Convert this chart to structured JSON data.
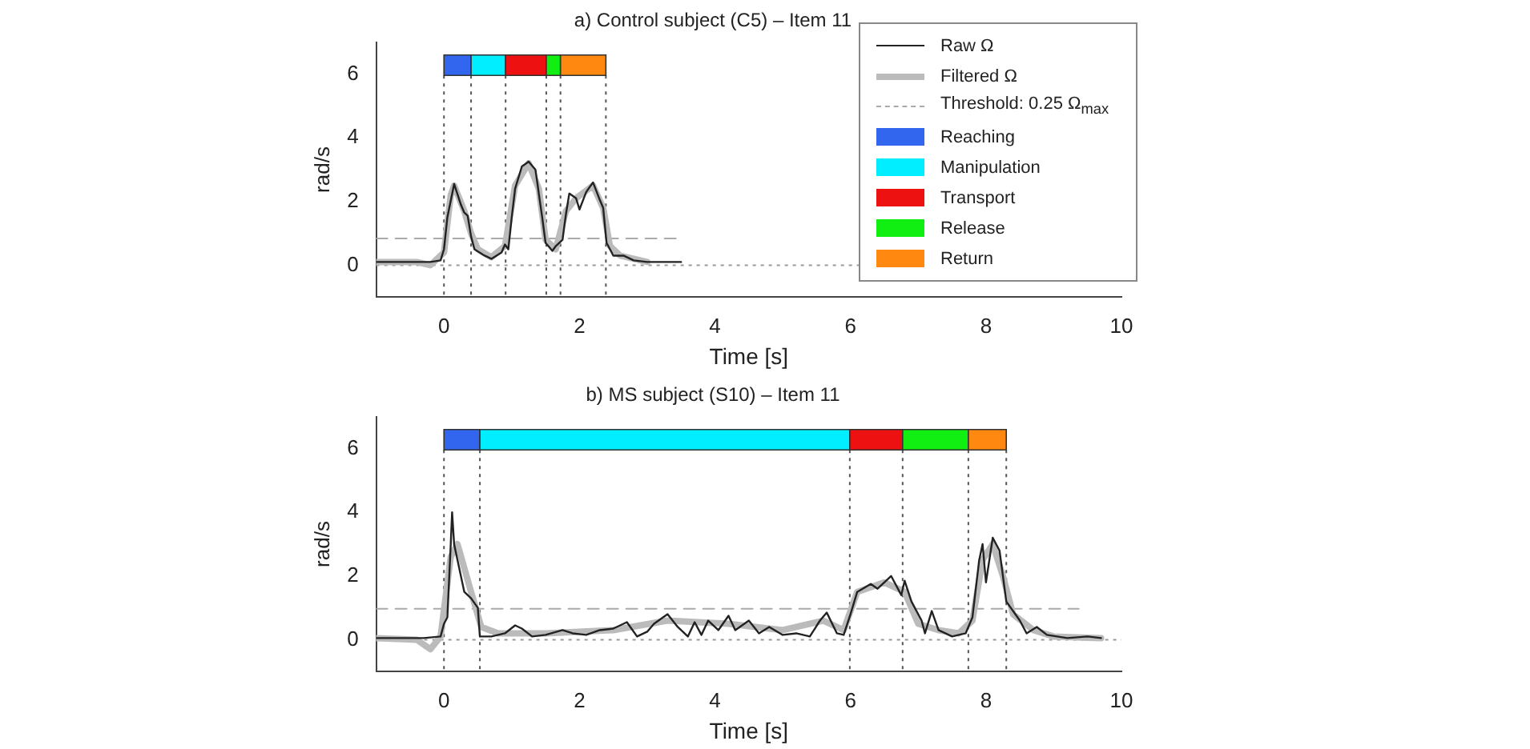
{
  "chart_data": [
    {
      "type": "line",
      "title": "a) Control subject (C5) – Item 11",
      "xlabel": "Time [s]",
      "ylabel": "rad/s",
      "xlim": [
        -1,
        10
      ],
      "xticks": [
        0,
        2,
        4,
        6,
        8,
        10
      ],
      "ylim": [
        -1,
        7
      ],
      "yticks": [
        0,
        2,
        4,
        6
      ],
      "grid": false,
      "legend": "top right",
      "marker": "none",
      "series": [
        {
          "name": "Raw Ω",
          "color": "#222222",
          "x": [
            -1,
            -0.2,
            -0.05,
            0,
            0.05,
            0.15,
            0.25,
            0.3,
            0.35,
            0.4,
            0.45,
            0.6,
            0.7,
            0.85,
            0.9,
            0.95,
            1.0,
            1.05,
            1.15,
            1.25,
            1.35,
            1.45,
            1.5,
            1.6,
            1.65,
            1.75,
            1.8,
            1.85,
            1.95,
            2.0,
            2.1,
            2.2,
            2.3,
            2.35,
            2.4,
            2.5,
            2.65,
            2.8,
            3.0,
            3.5
          ],
          "values": [
            0.1,
            0.1,
            0.15,
            0.5,
            1.5,
            2.55,
            1.9,
            1.65,
            1.55,
            0.9,
            0.5,
            0.3,
            0.2,
            0.4,
            0.65,
            0.5,
            1.5,
            2.4,
            3.1,
            3.25,
            3.0,
            1.5,
            0.7,
            0.45,
            0.6,
            0.8,
            1.6,
            2.25,
            2.1,
            1.75,
            2.3,
            2.6,
            2.05,
            1.8,
            0.7,
            0.3,
            0.3,
            0.15,
            0.1,
            0.1
          ]
        },
        {
          "name": "Filtered Ω",
          "color": "#bbbbbb",
          "x": [
            -1,
            -0.4,
            -0.2,
            0,
            0.1,
            0.15,
            0.3,
            0.4,
            0.5,
            0.7,
            0.9,
            1.05,
            1.25,
            1.4,
            1.5,
            1.65,
            1.8,
            1.95,
            2.2,
            2.35,
            2.45,
            2.6,
            2.8,
            3.0
          ],
          "values": [
            0.1,
            0.1,
            0.0,
            0.4,
            2.2,
            2.5,
            1.7,
            1.0,
            0.5,
            0.25,
            0.6,
            2.5,
            3.2,
            2.4,
            0.8,
            0.5,
            1.7,
            2.1,
            2.5,
            1.8,
            0.6,
            0.3,
            0.2,
            0.1
          ]
        },
        {
          "name": "Threshold: 0.25 Ω$_{max}$",
          "color": "#aaaaaa",
          "line_style": "dashed",
          "x": [
            -1,
            3.5
          ],
          "values": [
            0.84,
            0.84
          ]
        }
      ],
      "ref_lines": [
        {
          "axis": "y",
          "value": 0,
          "color": "#999999",
          "line_style": "dotted"
        },
        {
          "axis": "x",
          "value": 0,
          "color": "#555555",
          "line_style": "dotted"
        },
        {
          "axis": "x",
          "value": 0.4,
          "color": "#555555",
          "line_style": "dotted"
        },
        {
          "axis": "x",
          "value": 0.91,
          "color": "#555555",
          "line_style": "dotted"
        },
        {
          "axis": "x",
          "value": 1.51,
          "color": "#555555",
          "line_style": "dotted"
        },
        {
          "axis": "x",
          "value": 1.72,
          "color": "#555555",
          "line_style": "dotted"
        },
        {
          "axis": "x",
          "value": 2.39,
          "color": "#555555",
          "line_style": "dotted"
        }
      ],
      "bands": [
        {
          "axis": "x",
          "from": 0,
          "to": 0.4,
          "label": "Reaching",
          "color": "#3366ee"
        },
        {
          "axis": "x",
          "from": 0.4,
          "to": 0.91,
          "label": "Manipulation",
          "color": "#00eeff"
        },
        {
          "axis": "x",
          "from": 0.91,
          "to": 1.51,
          "label": "Transport",
          "color": "#ee1111"
        },
        {
          "axis": "x",
          "from": 1.51,
          "to": 1.72,
          "label": "Release",
          "color": "#11ee11"
        },
        {
          "axis": "x",
          "from": 1.72,
          "to": 2.39,
          "label": "Return",
          "color": "#ff8811"
        }
      ]
    },
    {
      "type": "line",
      "title": "b) MS subject (S10) – Item 11",
      "xlabel": "Time [s]",
      "ylabel": "rad/s",
      "xlim": [
        -1,
        10
      ],
      "xticks": [
        0,
        2,
        4,
        6,
        8,
        10
      ],
      "ylim": [
        -1,
        7
      ],
      "yticks": [
        0,
        2,
        4,
        6
      ],
      "grid": false,
      "legend": false,
      "marker": "none",
      "series": [
        {
          "color": "#222222",
          "x": [
            -1,
            -0.3,
            -0.05,
            0,
            0.05,
            0.1,
            0.12,
            0.15,
            0.2,
            0.3,
            0.4,
            0.5,
            0.53,
            0.7,
            0.9,
            1.05,
            1.15,
            1.3,
            1.5,
            1.75,
            1.9,
            2.1,
            2.3,
            2.5,
            2.7,
            2.85,
            3.0,
            3.1,
            3.3,
            3.45,
            3.6,
            3.7,
            3.8,
            3.9,
            4.05,
            4.2,
            4.3,
            4.5,
            4.65,
            4.8,
            5.0,
            5.2,
            5.4,
            5.55,
            5.65,
            5.8,
            5.9,
            6.0,
            6.1,
            6.3,
            6.4,
            6.6,
            6.75,
            6.8,
            6.9,
            7.05,
            7.1,
            7.2,
            7.3,
            7.5,
            7.7,
            7.8,
            7.9,
            7.95,
            8.0,
            8.1,
            8.15,
            8.2,
            8.3,
            8.5,
            8.6,
            8.75,
            8.9,
            9.2,
            9.5,
            9.7
          ],
          "values": [
            0.05,
            0.05,
            0.1,
            0.5,
            0.7,
            3.0,
            4.0,
            3.0,
            2.5,
            1.5,
            1.3,
            1.0,
            0.1,
            0.1,
            0.2,
            0.45,
            0.35,
            0.1,
            0.15,
            0.3,
            0.2,
            0.15,
            0.3,
            0.35,
            0.55,
            0.1,
            0.25,
            0.5,
            0.8,
            0.4,
            0.1,
            0.55,
            0.15,
            0.6,
            0.3,
            0.75,
            0.3,
            0.6,
            0.2,
            0.4,
            0.15,
            0.2,
            0.1,
            0.6,
            0.85,
            0.2,
            0.15,
            0.8,
            1.5,
            1.75,
            1.6,
            2.0,
            1.4,
            1.85,
            1.2,
            0.6,
            0.2,
            0.9,
            0.3,
            0.1,
            0.2,
            0.7,
            2.5,
            3.0,
            1.8,
            3.2,
            3.0,
            2.8,
            1.2,
            0.6,
            0.2,
            0.4,
            0.15,
            0.05,
            0.1,
            0.05
          ]
        },
        {
          "color": "#bbbbbb",
          "x": [
            -1,
            -0.4,
            -0.2,
            -0.05,
            0.1,
            0.2,
            0.4,
            0.55,
            0.8,
            1.5,
            2.5,
            3.3,
            4.2,
            5.0,
            5.6,
            5.9,
            6.1,
            6.5,
            6.8,
            7.0,
            7.3,
            7.6,
            7.8,
            7.95,
            8.1,
            8.25,
            8.4,
            8.7,
            9.0,
            9.7
          ],
          "values": [
            0.05,
            0.0,
            -0.3,
            0.1,
            2.6,
            3.0,
            1.5,
            0.4,
            0.2,
            0.2,
            0.3,
            0.6,
            0.5,
            0.3,
            0.6,
            0.3,
            1.5,
            1.8,
            1.5,
            0.5,
            0.3,
            0.2,
            0.6,
            2.5,
            3.0,
            2.0,
            0.8,
            0.3,
            0.1,
            0.05
          ]
        },
        {
          "color": "#aaaaaa",
          "line_style": "dashed",
          "x": [
            -1,
            9.37
          ],
          "values": [
            0.97,
            0.97
          ]
        }
      ],
      "ref_lines": [
        {
          "axis": "y",
          "value": 0,
          "color": "#999999",
          "line_style": "dotted"
        },
        {
          "axis": "x",
          "value": 0,
          "color": "#555555",
          "line_style": "dotted"
        },
        {
          "axis": "x",
          "value": 0.53,
          "color": "#555555",
          "line_style": "dotted"
        },
        {
          "axis": "x",
          "value": 5.99,
          "color": "#555555",
          "line_style": "dotted"
        },
        {
          "axis": "x",
          "value": 6.77,
          "color": "#555555",
          "line_style": "dotted"
        },
        {
          "axis": "x",
          "value": 7.74,
          "color": "#555555",
          "line_style": "dotted"
        },
        {
          "axis": "x",
          "value": 8.3,
          "color": "#555555",
          "line_style": "dotted"
        }
      ],
      "bands": [
        {
          "axis": "x",
          "from": 0,
          "to": 0.53,
          "color": "#3366ee"
        },
        {
          "axis": "x",
          "from": 0.53,
          "to": 5.99,
          "color": "#00eeff"
        },
        {
          "axis": "x",
          "from": 5.99,
          "to": 6.77,
          "color": "#ee1111"
        },
        {
          "axis": "x",
          "from": 6.77,
          "to": 7.74,
          "color": "#11ee11"
        },
        {
          "axis": "x",
          "from": 7.74,
          "to": 8.3,
          "color": "#ff8811"
        }
      ]
    }
  ]
}
